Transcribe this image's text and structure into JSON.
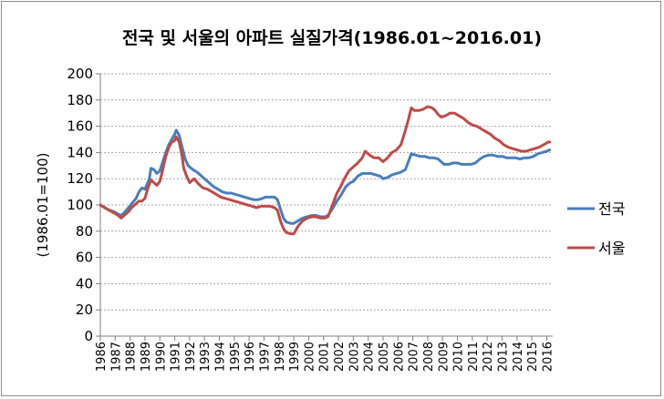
{
  "chart_data": {
    "type": "line",
    "title": "전국 및 서울의 아파트 실질가격(1986.01~2016.01)",
    "ylabel": "(1986.01=100)",
    "xlabel": "",
    "ylim": [
      0,
      200
    ],
    "xlim": [
      1986,
      2016.4
    ],
    "yticks": [
      0,
      20,
      40,
      60,
      80,
      100,
      120,
      140,
      160,
      180,
      200
    ],
    "xticks": [
      "1986",
      "1987",
      "1988",
      "1989",
      "1990",
      "1991",
      "1992",
      "1993",
      "1994",
      "1995",
      "1996",
      "1997",
      "1998",
      "1999",
      "2000",
      "2001",
      "2002",
      "2003",
      "2004",
      "2005",
      "2006",
      "2007",
      "2008",
      "2009",
      "2010",
      "2011",
      "2012",
      "2013",
      "2014",
      "2015",
      "2016"
    ],
    "grid": true,
    "legend_position": "right",
    "series": [
      {
        "name": "전국",
        "color": "#4a7ebb",
        "points": [
          [
            1986.0,
            100
          ],
          [
            1986.3,
            98
          ],
          [
            1986.6,
            96
          ],
          [
            1986.9,
            95
          ],
          [
            1987.2,
            93
          ],
          [
            1987.4,
            92
          ],
          [
            1987.6,
            94
          ],
          [
            1987.9,
            98
          ],
          [
            1988.1,
            101
          ],
          [
            1988.4,
            105
          ],
          [
            1988.6,
            110
          ],
          [
            1988.8,
            113
          ],
          [
            1989.0,
            112
          ],
          [
            1989.3,
            120
          ],
          [
            1989.4,
            128
          ],
          [
            1989.6,
            127
          ],
          [
            1989.8,
            124
          ],
          [
            1990.0,
            126
          ],
          [
            1990.2,
            133
          ],
          [
            1990.4,
            140
          ],
          [
            1990.6,
            146
          ],
          [
            1990.8,
            150
          ],
          [
            1991.0,
            154
          ],
          [
            1991.1,
            157
          ],
          [
            1991.3,
            153
          ],
          [
            1991.5,
            144
          ],
          [
            1991.7,
            135
          ],
          [
            1991.9,
            130
          ],
          [
            1992.2,
            127
          ],
          [
            1992.5,
            125
          ],
          [
            1992.8,
            122
          ],
          [
            1993.0,
            120
          ],
          [
            1993.3,
            117
          ],
          [
            1993.6,
            114
          ],
          [
            1993.9,
            112
          ],
          [
            1994.2,
            110
          ],
          [
            1994.5,
            109
          ],
          [
            1994.8,
            109
          ],
          [
            1995.1,
            108
          ],
          [
            1995.4,
            107
          ],
          [
            1995.7,
            106
          ],
          [
            1996.0,
            105
          ],
          [
            1996.3,
            104
          ],
          [
            1996.6,
            104
          ],
          [
            1996.9,
            105
          ],
          [
            1997.1,
            106
          ],
          [
            1997.4,
            106
          ],
          [
            1997.7,
            106
          ],
          [
            1997.9,
            104
          ],
          [
            1998.1,
            97
          ],
          [
            1998.3,
            90
          ],
          [
            1998.5,
            87
          ],
          [
            1998.8,
            86
          ],
          [
            1999.0,
            86
          ],
          [
            1999.3,
            88
          ],
          [
            1999.6,
            90
          ],
          [
            1999.9,
            91
          ],
          [
            2000.2,
            92
          ],
          [
            2000.5,
            92
          ],
          [
            2000.8,
            91
          ],
          [
            2001.1,
            91
          ],
          [
            2001.3,
            92
          ],
          [
            2001.6,
            97
          ],
          [
            2001.9,
            103
          ],
          [
            2002.2,
            108
          ],
          [
            2002.5,
            114
          ],
          [
            2002.8,
            117
          ],
          [
            2003.0,
            118
          ],
          [
            2003.3,
            122
          ],
          [
            2003.6,
            124
          ],
          [
            2003.9,
            124
          ],
          [
            2004.2,
            124
          ],
          [
            2004.5,
            123
          ],
          [
            2004.8,
            122
          ],
          [
            2005.0,
            120
          ],
          [
            2005.3,
            121
          ],
          [
            2005.6,
            123
          ],
          [
            2005.9,
            124
          ],
          [
            2006.2,
            125
          ],
          [
            2006.5,
            127
          ],
          [
            2006.7,
            133
          ],
          [
            2006.9,
            139
          ],
          [
            2007.2,
            138
          ],
          [
            2007.5,
            137
          ],
          [
            2007.8,
            137
          ],
          [
            2008.1,
            136
          ],
          [
            2008.4,
            136
          ],
          [
            2008.7,
            135
          ],
          [
            2008.9,
            133
          ],
          [
            2009.1,
            131
          ],
          [
            2009.4,
            131
          ],
          [
            2009.7,
            132
          ],
          [
            2010.0,
            132
          ],
          [
            2010.3,
            131
          ],
          [
            2010.6,
            131
          ],
          [
            2010.9,
            131
          ],
          [
            2011.2,
            132
          ],
          [
            2011.5,
            135
          ],
          [
            2011.8,
            137
          ],
          [
            2012.1,
            138
          ],
          [
            2012.4,
            138
          ],
          [
            2012.7,
            137
          ],
          [
            2013.0,
            137
          ],
          [
            2013.3,
            136
          ],
          [
            2013.6,
            136
          ],
          [
            2013.9,
            136
          ],
          [
            2014.2,
            135
          ],
          [
            2014.5,
            136
          ],
          [
            2014.8,
            136
          ],
          [
            2015.1,
            137
          ],
          [
            2015.4,
            139
          ],
          [
            2015.7,
            140
          ],
          [
            2016.0,
            141
          ],
          [
            2016.2,
            142
          ]
        ]
      },
      {
        "name": "서울",
        "color": "#be4b48",
        "points": [
          [
            1986.0,
            100
          ],
          [
            1986.3,
            98
          ],
          [
            1986.6,
            96
          ],
          [
            1986.9,
            94
          ],
          [
            1987.2,
            92
          ],
          [
            1987.4,
            90
          ],
          [
            1987.6,
            92
          ],
          [
            1987.9,
            95
          ],
          [
            1988.1,
            98
          ],
          [
            1988.4,
            101
          ],
          [
            1988.6,
            103
          ],
          [
            1988.8,
            103
          ],
          [
            1989.0,
            105
          ],
          [
            1989.2,
            113
          ],
          [
            1989.4,
            119
          ],
          [
            1989.6,
            117
          ],
          [
            1989.8,
            115
          ],
          [
            1990.0,
            118
          ],
          [
            1990.2,
            127
          ],
          [
            1990.4,
            137
          ],
          [
            1990.6,
            144
          ],
          [
            1990.8,
            148
          ],
          [
            1991.0,
            149
          ],
          [
            1991.1,
            152
          ],
          [
            1991.3,
            148
          ],
          [
            1991.5,
            137
          ],
          [
            1991.6,
            128
          ],
          [
            1991.8,
            122
          ],
          [
            1992.0,
            117
          ],
          [
            1992.3,
            120
          ],
          [
            1992.6,
            116
          ],
          [
            1992.9,
            113
          ],
          [
            1993.2,
            112
          ],
          [
            1993.5,
            110
          ],
          [
            1993.8,
            108
          ],
          [
            1994.1,
            106
          ],
          [
            1994.4,
            105
          ],
          [
            1994.7,
            104
          ],
          [
            1995.0,
            103
          ],
          [
            1995.3,
            102
          ],
          [
            1995.6,
            101
          ],
          [
            1995.9,
            100
          ],
          [
            1996.2,
            99
          ],
          [
            1996.5,
            98
          ],
          [
            1996.8,
            99
          ],
          [
            1997.1,
            99
          ],
          [
            1997.4,
            99
          ],
          [
            1997.7,
            98
          ],
          [
            1997.9,
            96
          ],
          [
            1998.1,
            88
          ],
          [
            1998.3,
            82
          ],
          [
            1998.5,
            79
          ],
          [
            1998.8,
            78
          ],
          [
            1999.0,
            78
          ],
          [
            1999.3,
            84
          ],
          [
            1999.6,
            88
          ],
          [
            1999.9,
            90
          ],
          [
            2000.2,
            91
          ],
          [
            2000.5,
            91
          ],
          [
            2000.8,
            90
          ],
          [
            2001.1,
            90
          ],
          [
            2001.3,
            91
          ],
          [
            2001.6,
            100
          ],
          [
            2001.9,
            109
          ],
          [
            2002.1,
            113
          ],
          [
            2002.4,
            120
          ],
          [
            2002.7,
            126
          ],
          [
            2002.9,
            128
          ],
          [
            2003.1,
            130
          ],
          [
            2003.3,
            132
          ],
          [
            2003.6,
            136
          ],
          [
            2003.8,
            141
          ],
          [
            2004.1,
            138
          ],
          [
            2004.4,
            136
          ],
          [
            2004.7,
            136
          ],
          [
            2005.0,
            133
          ],
          [
            2005.3,
            136
          ],
          [
            2005.6,
            140
          ],
          [
            2005.9,
            142
          ],
          [
            2006.2,
            146
          ],
          [
            2006.5,
            157
          ],
          [
            2006.7,
            165
          ],
          [
            2006.9,
            174
          ],
          [
            2007.1,
            172
          ],
          [
            2007.4,
            172
          ],
          [
            2007.7,
            173
          ],
          [
            2008.0,
            175
          ],
          [
            2008.3,
            174
          ],
          [
            2008.5,
            172
          ],
          [
            2008.7,
            169
          ],
          [
            2008.9,
            167
          ],
          [
            2009.2,
            168
          ],
          [
            2009.5,
            170
          ],
          [
            2009.8,
            170
          ],
          [
            2010.1,
            168
          ],
          [
            2010.4,
            166
          ],
          [
            2010.7,
            163
          ],
          [
            2011.0,
            161
          ],
          [
            2011.3,
            160
          ],
          [
            2011.6,
            158
          ],
          [
            2011.9,
            156
          ],
          [
            2012.2,
            154
          ],
          [
            2012.5,
            151
          ],
          [
            2012.8,
            149
          ],
          [
            2013.1,
            146
          ],
          [
            2013.4,
            144
          ],
          [
            2013.7,
            143
          ],
          [
            2014.0,
            142
          ],
          [
            2014.3,
            141
          ],
          [
            2014.6,
            141
          ],
          [
            2014.9,
            142
          ],
          [
            2015.2,
            143
          ],
          [
            2015.5,
            144
          ],
          [
            2015.8,
            146
          ],
          [
            2016.1,
            148
          ],
          [
            2016.2,
            148
          ]
        ]
      }
    ]
  }
}
